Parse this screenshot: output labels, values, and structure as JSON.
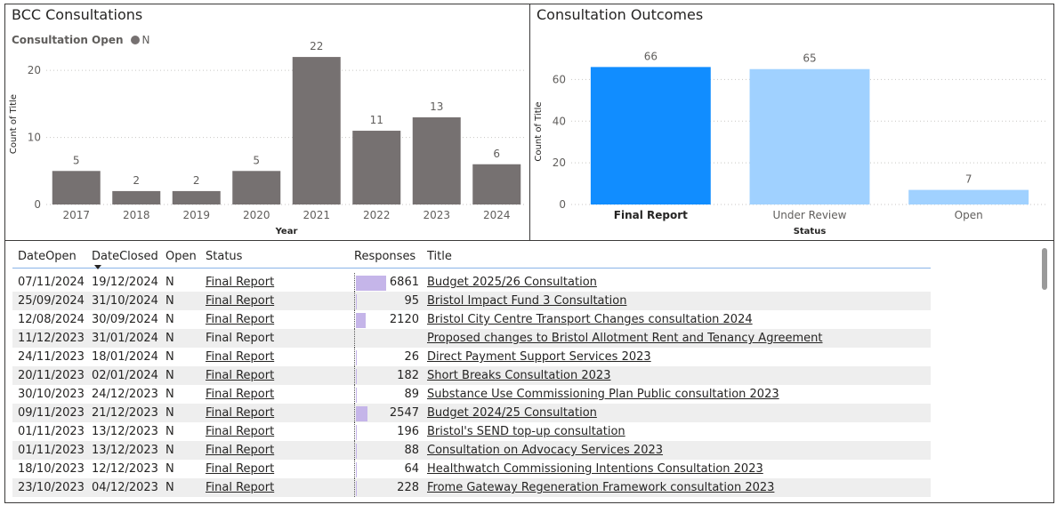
{
  "year_chart": {
    "title": "BCC Consultations",
    "legend_title": "Consultation Open",
    "legend_item": "N",
    "colors": {
      "bar": "#767171",
      "grid": "#c8c6c4"
    },
    "chart_data": {
      "type": "bar",
      "categories": [
        "2017",
        "2018",
        "2019",
        "2020",
        "2021",
        "2022",
        "2023",
        "2024"
      ],
      "values": [
        5,
        2,
        2,
        5,
        22,
        11,
        13,
        6
      ],
      "xlabel": "Year",
      "ylabel": "Count of Title",
      "yticks": [
        0,
        10,
        20
      ],
      "ylim": [
        0,
        24
      ],
      "grid": true
    }
  },
  "status_chart": {
    "title": "Consultation Outcomes",
    "colors": {
      "selected": "#118dff",
      "other": "#a0d1ff",
      "grid": "#c8c6c4"
    },
    "chart_data": {
      "type": "bar",
      "categories": [
        "Final Report",
        "Under Review",
        "Open"
      ],
      "values": [
        66,
        65,
        7
      ],
      "selected_category": "Final Report",
      "xlabel": "Status",
      "ylabel": "Count of Title",
      "yticks": [
        0,
        20,
        40,
        60
      ],
      "ylim": [
        0,
        70
      ],
      "grid": true
    }
  },
  "table": {
    "headers": {
      "date_open": "DateOpen",
      "date_closed": "DateClosed",
      "open": "Open",
      "status": "Status",
      "responses": "Responses",
      "title": "Title"
    },
    "sorted_by": "DateClosed",
    "sort_direction": "descending",
    "max_responses": 6861,
    "rows": [
      {
        "date_open": "07/11/2024",
        "date_closed": "19/12/2024",
        "open": "N",
        "status": "Final Report",
        "status_link": true,
        "responses": "6861",
        "responses_value": 6861,
        "title": "Budget 2025/26 Consultation",
        "title_link": true
      },
      {
        "date_open": "25/09/2024",
        "date_closed": "31/10/2024",
        "open": "N",
        "status": "Final Report",
        "status_link": true,
        "responses": "95",
        "responses_value": 95,
        "title": "Bristol Impact Fund 3 Consultation",
        "title_link": true
      },
      {
        "date_open": "12/08/2024",
        "date_closed": "30/09/2024",
        "open": "N",
        "status": "Final Report",
        "status_link": true,
        "responses": "2120",
        "responses_value": 2120,
        "title": "Bristol City Centre Transport Changes consultation 2024",
        "title_link": true
      },
      {
        "date_open": "11/12/2023",
        "date_closed": "31/01/2024",
        "open": "N",
        "status": "Final Report",
        "status_link": false,
        "responses": "",
        "responses_value": 0,
        "title": "Proposed changes to Bristol Allotment Rent and Tenancy Agreement",
        "title_link": true
      },
      {
        "date_open": "24/11/2023",
        "date_closed": "18/01/2024",
        "open": "N",
        "status": "Final Report",
        "status_link": true,
        "responses": "26",
        "responses_value": 26,
        "title": "Direct Payment Support Services 2023",
        "title_link": true
      },
      {
        "date_open": "20/11/2023",
        "date_closed": "02/01/2024",
        "open": "N",
        "status": "Final Report",
        "status_link": true,
        "responses": "182",
        "responses_value": 182,
        "title": "Short Breaks Consultation 2023",
        "title_link": true
      },
      {
        "date_open": "30/10/2023",
        "date_closed": "24/12/2023",
        "open": "N",
        "status": "Final Report",
        "status_link": true,
        "responses": "89",
        "responses_value": 89,
        "title": "Substance Use Commissioning Plan Public consultation 2023",
        "title_link": true
      },
      {
        "date_open": "09/11/2023",
        "date_closed": "21/12/2023",
        "open": "N",
        "status": "Final Report",
        "status_link": true,
        "responses": "2547",
        "responses_value": 2547,
        "title": "Budget 2024/25 Consultation",
        "title_link": true
      },
      {
        "date_open": "01/11/2023",
        "date_closed": "13/12/2023",
        "open": "N",
        "status": "Final Report",
        "status_link": true,
        "responses": "196",
        "responses_value": 196,
        "title": "Bristol's SEND top-up consultation",
        "title_link": true
      },
      {
        "date_open": "01/11/2023",
        "date_closed": "13/12/2023",
        "open": "N",
        "status": "Final Report",
        "status_link": true,
        "responses": "88",
        "responses_value": 88,
        "title": "Consultation on Advocacy Services 2023",
        "title_link": true
      },
      {
        "date_open": "18/10/2023",
        "date_closed": "12/12/2023",
        "open": "N",
        "status": "Final Report",
        "status_link": true,
        "responses": "64",
        "responses_value": 64,
        "title": "Healthwatch Commissioning Intentions Consultation 2023",
        "title_link": true
      },
      {
        "date_open": "23/10/2023",
        "date_closed": "04/12/2023",
        "open": "N",
        "status": "Final Report",
        "status_link": true,
        "responses": "228",
        "responses_value": 228,
        "title": "Frome Gateway Regeneration Framework consultation 2023",
        "title_link": true
      }
    ]
  }
}
